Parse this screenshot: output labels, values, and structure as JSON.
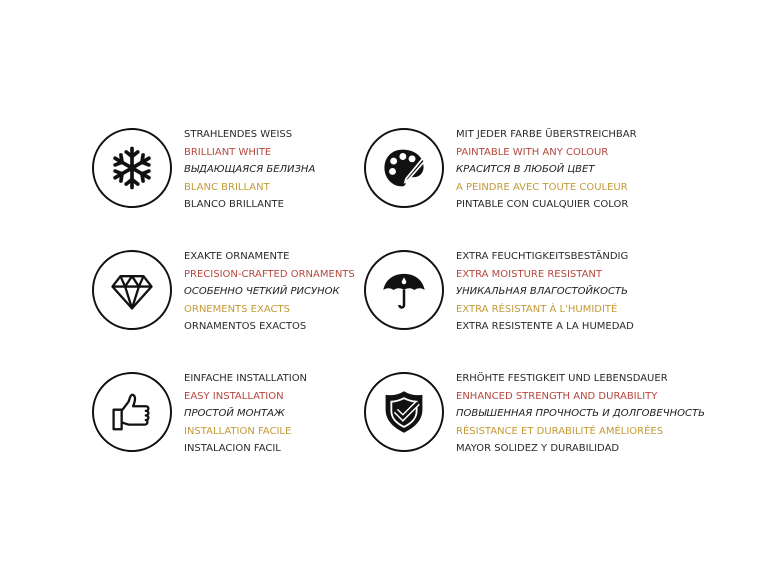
{
  "colors": {
    "accent_red": "#b5473e",
    "accent_gold": "#c49a35",
    "text": "#2a2a2a"
  },
  "features": [
    {
      "icon": "snowflake-icon",
      "lines": [
        "STRAHLENDES WEISS",
        "BRILLIANT WHITE",
        "ВЫДАЮЩАЯСЯ БЕЛИЗНА",
        "BLANC BRILLANT",
        "BLANCO BRILLANTE"
      ]
    },
    {
      "icon": "paint-palette-icon",
      "lines": [
        "MIT JEDER FARBE ÜBERSTREICHBAR",
        "PAINTABLE WITH ANY COLOUR",
        "КРАСИТСЯ В ЛЮБОЙ ЦВЕТ",
        "A PEINDRE AVEC TOUTE COULEUR",
        "PINTABLE CON CUALQUIER COLOR"
      ]
    },
    {
      "icon": "diamond-icon",
      "lines": [
        "EXAKTE ORNAMENTE",
        "PRECISION-CRAFTED ORNAMENTS",
        "ОСОБЕННО ЧЕТКИЙ РИСУНОК",
        "ORNEMENTS EXACTS",
        "ORNAMENTOS EXACTOS"
      ]
    },
    {
      "icon": "umbrella-icon",
      "lines": [
        "EXTRA FEUCHTIGKEITSBESTÄNDIG",
        "EXTRA MOISTURE RESISTANT",
        "УНИКАЛЬНАЯ ВЛАГОСТОЙКОСТЬ",
        "EXTRA RÉSISTANT À L'HUMIDITÉ",
        "EXTRA RESISTENTE A LA HUMEDAD"
      ]
    },
    {
      "icon": "thumbs-up-icon",
      "lines": [
        "EINFACHE INSTALLATION",
        "EASY INSTALLATION",
        "ПРОСТОЙ МОНТАЖ",
        "INSTALLATION FACILE",
        "INSTALACION FACIL"
      ]
    },
    {
      "icon": "shield-check-icon",
      "lines": [
        "ERHÖHTE FESTIGKEIT UND LEBENSDAUER",
        "ENHANCED STRENGTH AND DURABILITY",
        "ПОВЫШЕННАЯ ПРОЧНОСТЬ И ДОЛГОВЕЧНОСТЬ",
        "RÉSISTANCE ET DURABILITÉ AMÉLIORÉES",
        "MAYOR SOLIDEZ Y DURABILIDAD"
      ]
    }
  ]
}
